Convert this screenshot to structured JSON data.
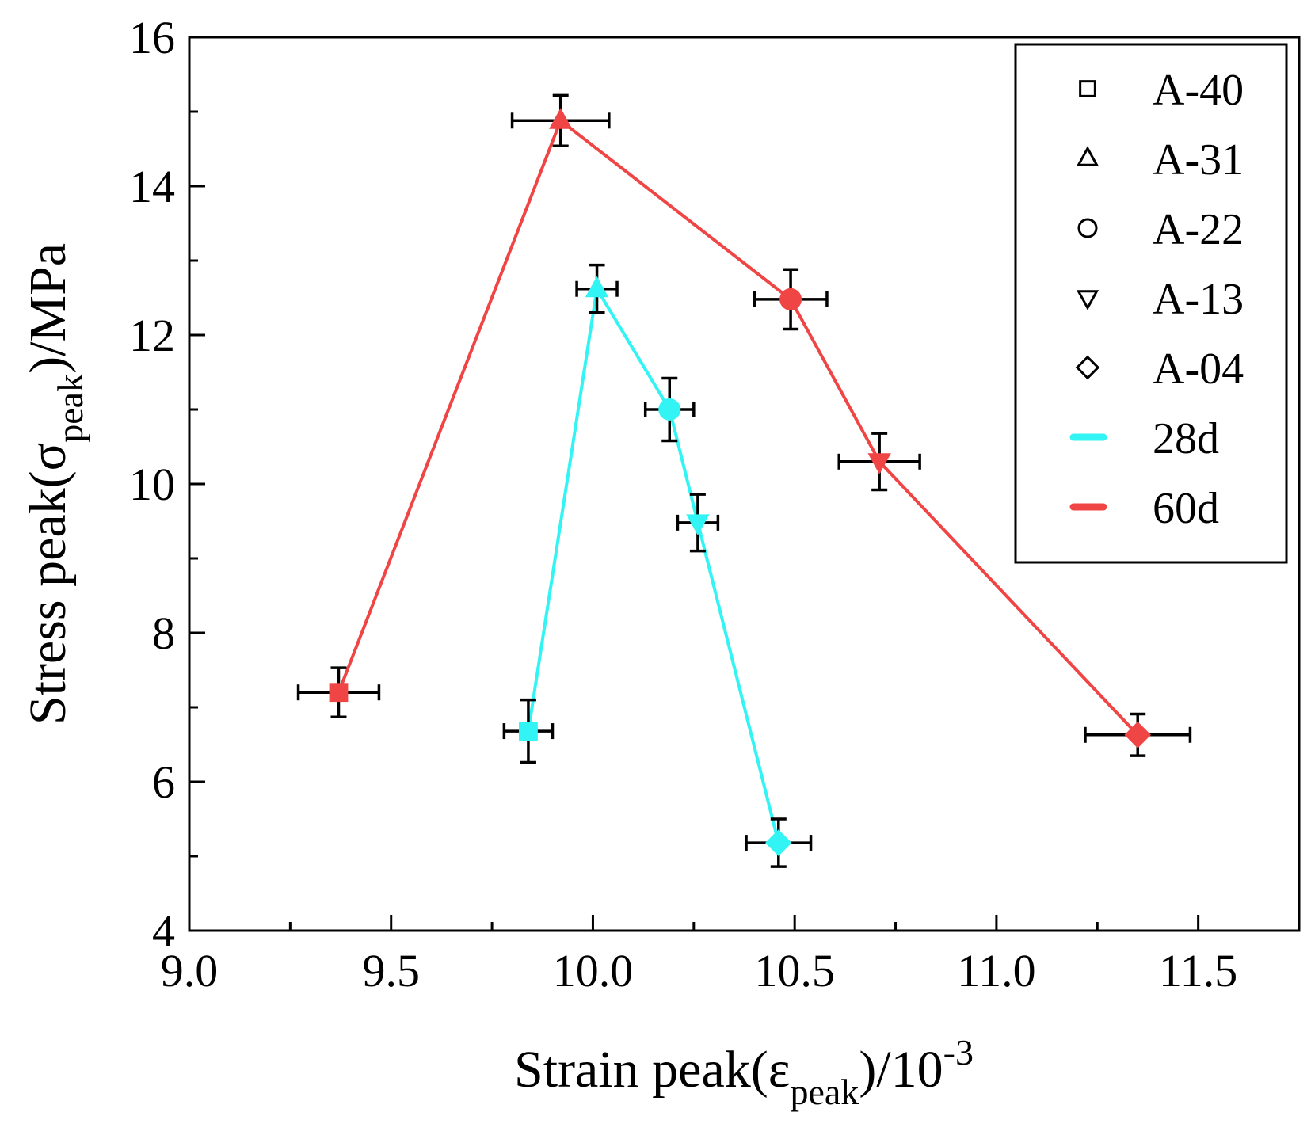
{
  "chart_data": {
    "type": "scatter",
    "xlabel": {
      "base": "Strain peak(ε",
      "sub": "peak",
      "mid": ")/10",
      "sup": "-3"
    },
    "ylabel": {
      "base": "Stress peak(σ",
      "sub": "peak",
      "tail": ")/MPa"
    },
    "xlim": [
      9.0,
      11.75
    ],
    "ylim": [
      4,
      16
    ],
    "xticks": [
      9.0,
      9.5,
      10.0,
      10.5,
      11.0,
      11.5
    ],
    "xtick_labels": [
      "9.0",
      "9.5",
      "10.0",
      "10.5",
      "11.0",
      "11.5"
    ],
    "yticks": [
      4,
      6,
      8,
      10,
      12,
      14,
      16
    ],
    "ytick_labels": [
      "4",
      "6",
      "8",
      "10",
      "12",
      "14",
      "16"
    ],
    "grid": false,
    "legend_position": "top-right",
    "marker_legend": [
      {
        "label": "A-40",
        "marker": "square"
      },
      {
        "label": "A-31",
        "marker": "triangle-up"
      },
      {
        "label": "A-22",
        "marker": "circle"
      },
      {
        "label": "A-13",
        "marker": "triangle-down"
      },
      {
        "label": "A-04",
        "marker": "diamond"
      }
    ],
    "series": [
      {
        "name": "28d",
        "color": "#33f4f4",
        "points": [
          {
            "group": "A-40",
            "marker": "square",
            "x": 9.84,
            "y": 6.68,
            "xerr": 0.06,
            "yerr": 0.42
          },
          {
            "group": "A-31",
            "marker": "triangle-up",
            "x": 10.01,
            "y": 12.62,
            "xerr": 0.05,
            "yerr": 0.32
          },
          {
            "group": "A-22",
            "marker": "circle",
            "x": 10.19,
            "y": 11.0,
            "xerr": 0.06,
            "yerr": 0.42
          },
          {
            "group": "A-13",
            "marker": "triangle-down",
            "x": 10.26,
            "y": 9.48,
            "xerr": 0.05,
            "yerr": 0.38
          },
          {
            "group": "A-04",
            "marker": "diamond",
            "x": 10.46,
            "y": 5.18,
            "xerr": 0.08,
            "yerr": 0.32
          }
        ]
      },
      {
        "name": "60d",
        "color": "#f04545",
        "points": [
          {
            "group": "A-40",
            "marker": "square",
            "x": 9.37,
            "y": 7.2,
            "xerr": 0.1,
            "yerr": 0.33
          },
          {
            "group": "A-31",
            "marker": "triangle-up",
            "x": 9.92,
            "y": 14.88,
            "xerr": 0.12,
            "yerr": 0.34
          },
          {
            "group": "A-22",
            "marker": "circle",
            "x": 10.49,
            "y": 12.48,
            "xerr": 0.09,
            "yerr": 0.4
          },
          {
            "group": "A-13",
            "marker": "triangle-down",
            "x": 10.71,
            "y": 10.3,
            "xerr": 0.1,
            "yerr": 0.38
          },
          {
            "group": "A-04",
            "marker": "diamond",
            "x": 11.35,
            "y": 6.63,
            "xerr": 0.13,
            "yerr": 0.28
          }
        ]
      }
    ]
  }
}
